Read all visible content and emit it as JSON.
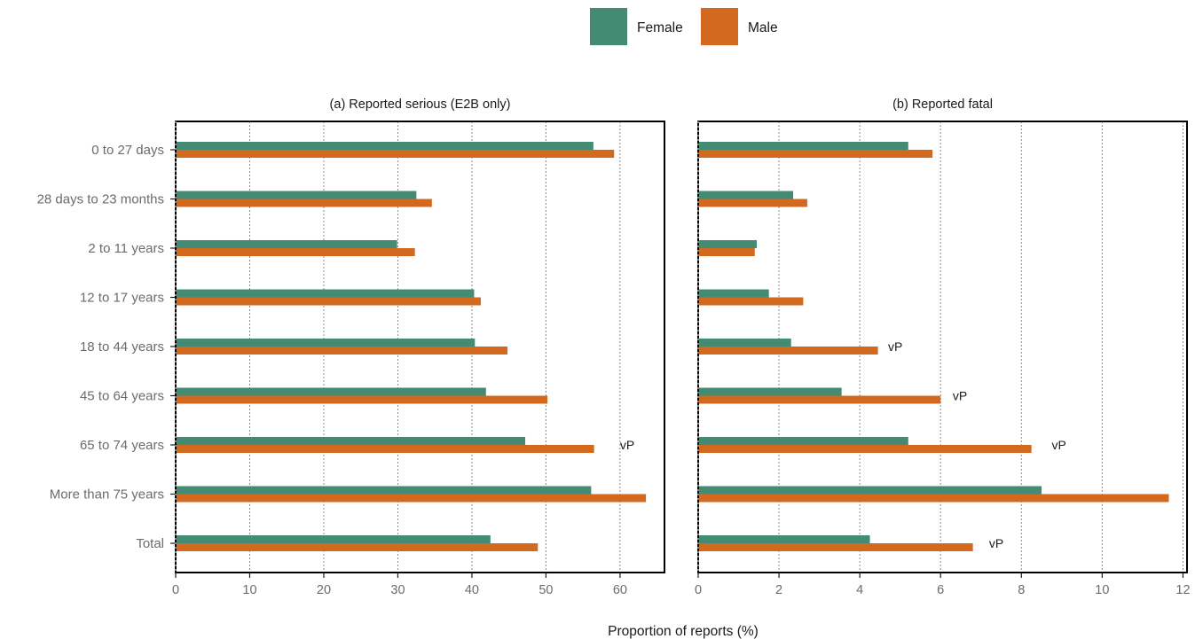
{
  "chart_data": {
    "type": "bar",
    "orientation": "horizontal",
    "xlabel": "Proportion of reports (%)",
    "legend": {
      "placement": "top-center",
      "entries": [
        {
          "name": "Female",
          "color": "#448b73"
        },
        {
          "name": "Male",
          "color": "#d2691e"
        }
      ]
    },
    "categories": [
      "0 to 27 days",
      "28 days to 23 months",
      "2 to 11 years",
      "12 to 17 years",
      "18 to 44 years",
      "45 to 64 years",
      "65 to 74 years",
      "More than 75 years",
      "Total"
    ],
    "grid": "vertical dotted",
    "panels": [
      {
        "title": "(a) Reported serious (E2B only)",
        "xlim": [
          0,
          66
        ],
        "xticks": [
          0,
          10,
          20,
          30,
          40,
          50,
          60
        ],
        "series": [
          {
            "name": "Female",
            "color": "#448b73",
            "values": [
              56.4,
              32.5,
              29.9,
              40.3,
              40.4,
              41.9,
              47.2,
              56.1,
              42.5
            ]
          },
          {
            "name": "Male",
            "color": "#d2691e",
            "values": [
              59.2,
              34.6,
              32.3,
              41.2,
              44.8,
              50.2,
              56.5,
              63.5,
              48.9
            ]
          }
        ],
        "annotations": [
          {
            "category": "65 to 74 years",
            "text": "vP",
            "x": 60
          }
        ]
      },
      {
        "title": "(b) Reported fatal",
        "xlim": [
          0,
          12.1
        ],
        "xticks": [
          0,
          2,
          4,
          6,
          8,
          10,
          12
        ],
        "series": [
          {
            "name": "Female",
            "color": "#448b73",
            "values": [
              5.2,
              2.35,
              1.45,
              1.75,
              2.3,
              3.55,
              5.2,
              8.5,
              4.25
            ]
          },
          {
            "name": "Male",
            "color": "#d2691e",
            "values": [
              5.8,
              2.7,
              1.4,
              2.6,
              4.45,
              6.0,
              8.25,
              11.65,
              6.8
            ]
          }
        ],
        "annotations": [
          {
            "category": "18 to 44 years",
            "text": "vP",
            "x": 4.7
          },
          {
            "category": "45 to 64 years",
            "text": "vP",
            "x": 6.3
          },
          {
            "category": "65 to 74 years",
            "text": "vP",
            "x": 8.75
          },
          {
            "category": "Total",
            "text": "vP",
            "x": 7.2
          }
        ]
      }
    ]
  }
}
